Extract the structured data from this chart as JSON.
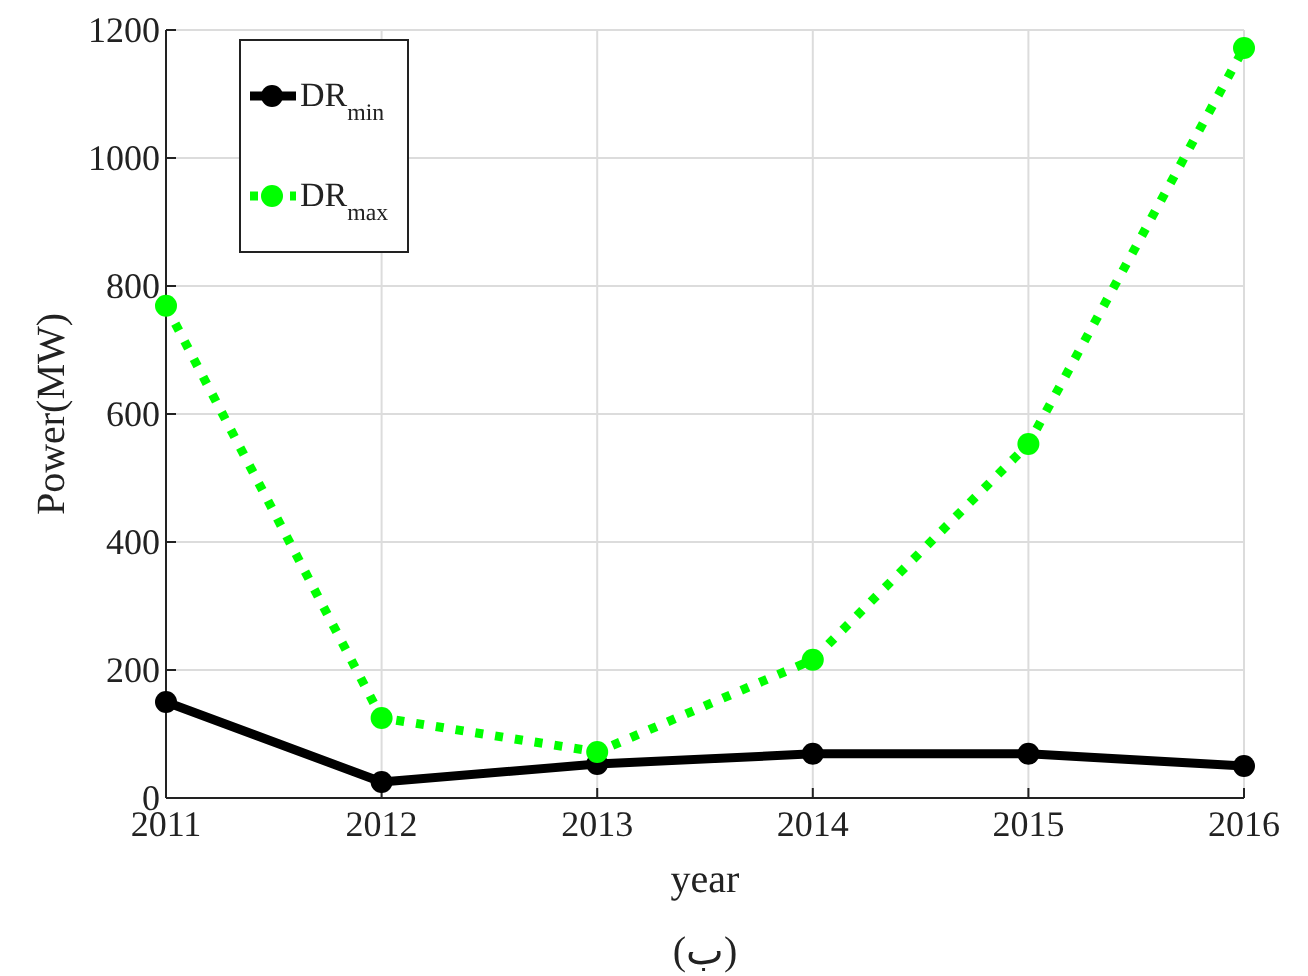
{
  "chart_data": {
    "type": "line",
    "xlabel": "year",
    "ylabel": "Power(MW)",
    "annotations": [
      "(ب)"
    ],
    "x": [
      2011,
      2012,
      2013,
      2014,
      2015,
      2016
    ],
    "xlim": [
      2011,
      2016
    ],
    "xticks": [
      2011,
      2012,
      2013,
      2014,
      2015,
      2016
    ],
    "ylim": [
      0,
      1200
    ],
    "yticks": [
      0,
      200,
      400,
      600,
      800,
      1000,
      1200
    ],
    "grid": true,
    "legend": "top left",
    "marker": "circle",
    "series": [
      {
        "name": "DR$_{min}$",
        "color": "#000000",
        "line_style": "solid",
        "values": [
          150,
          25,
          53,
          69,
          69,
          50
        ]
      },
      {
        "name": "DR$_{max}$",
        "color": "#00ff00",
        "line_style": "dotted",
        "values": [
          769,
          125,
          72,
          216,
          553,
          1172
        ]
      }
    ]
  }
}
